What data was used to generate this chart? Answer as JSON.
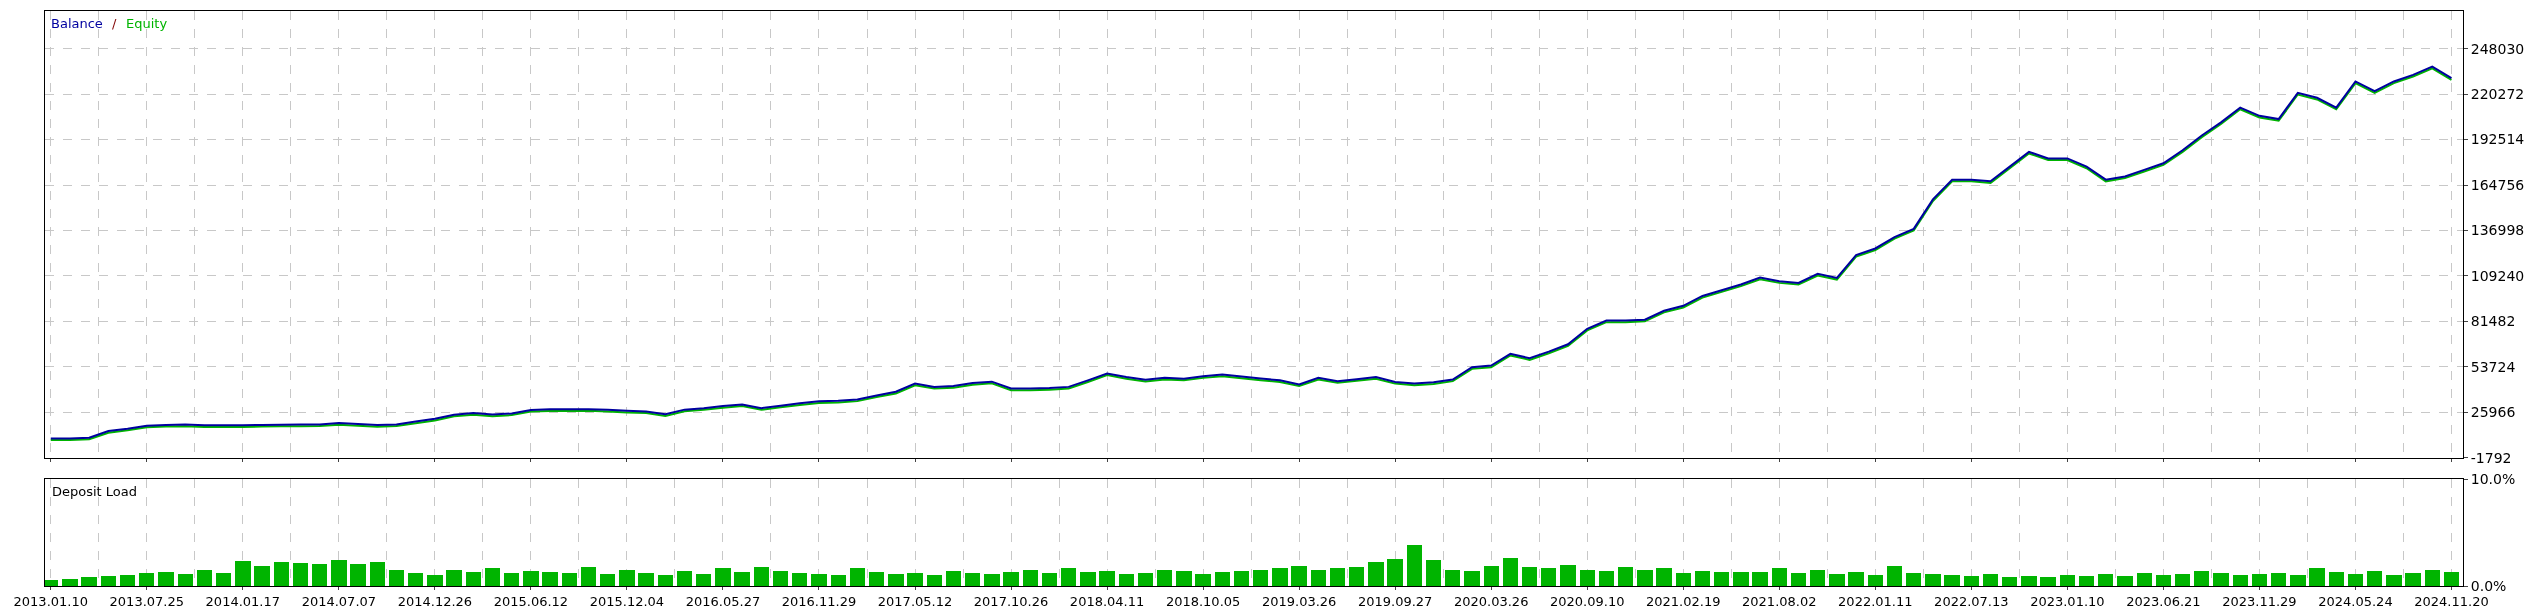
{
  "chart_data": [
    {
      "type": "line",
      "annotations": [
        "/"
      ],
      "legend": false,
      "grid": true,
      "tick_labels": "y",
      "categories": [
        "2013.01.10",
        null,
        null,
        null,
        null,
        "2013.07.25",
        null,
        null,
        null,
        null,
        "2014.01.17",
        null,
        null,
        null,
        null,
        "2014.07.07",
        null,
        null,
        null,
        null,
        "2014.12.26",
        null,
        null,
        null,
        null,
        "2015.06.12",
        null,
        null,
        null,
        null,
        "2015.12.04",
        null,
        null,
        null,
        null,
        "2016.05.27",
        null,
        null,
        null,
        null,
        "2016.11.29",
        null,
        null,
        null,
        null,
        "2017.05.12",
        null,
        null,
        null,
        null,
        "2017.10.26",
        null,
        null,
        null,
        null,
        "2018.04.11",
        null,
        null,
        null,
        null,
        "2018.10.05",
        null,
        null,
        null,
        null,
        "2019.03.26",
        null,
        null,
        null,
        null,
        "2019.09.27",
        null,
        null,
        null,
        null,
        "2020.03.26",
        null,
        null,
        null,
        null,
        "2020.09.10",
        null,
        null,
        null,
        null,
        "2021.02.19",
        null,
        null,
        null,
        null,
        "2021.08.02",
        null,
        null,
        null,
        null,
        "2022.01.11",
        null,
        null,
        null,
        null,
        "2022.07.13",
        null,
        null,
        null,
        null,
        "2023.01.10",
        null,
        null,
        null,
        null,
        "2023.06.21",
        null,
        null,
        null,
        null,
        "2023.11.29",
        null,
        null,
        null,
        null,
        "2024.05.24",
        null,
        null,
        null,
        null,
        "2024.11.20"
      ],
      "ylim": [
        -1792,
        271000
      ],
      "yticks": [
        -1792,
        25966,
        53724,
        81482,
        109240,
        136998,
        164756,
        192514,
        220272,
        248030
      ],
      "series": [
        {
          "name": "Equity",
          "color": "#00b400",
          "values": [
            9000,
            9000,
            9500,
            13500,
            15000,
            16800,
            17300,
            17500,
            17000,
            17000,
            17000,
            17300,
            17400,
            17500,
            17600,
            18400,
            17800,
            17200,
            17600,
            19300,
            21000,
            23500,
            24500,
            23600,
            24300,
            26400,
            26800,
            26800,
            26900,
            26500,
            25900,
            25500,
            23800,
            26600,
            27500,
            28800,
            29800,
            27500,
            29000,
            30500,
            31700,
            32000,
            32800,
            35300,
            37500,
            42500,
            40500,
            41000,
            42800,
            43700,
            39500,
            39500,
            39800,
            40500,
            44500,
            48700,
            46500,
            44800,
            46000,
            45500,
            47000,
            48000,
            46800,
            45600,
            44500,
            42000,
            46000,
            44000,
            45200,
            46500,
            43500,
            42500,
            43300,
            45000,
            52500,
            53500,
            60700,
            58000,
            62000,
            66500,
            76000,
            81000,
            81000,
            81500,
            87000,
            90000,
            96000,
            99500,
            103000,
            107200,
            105000,
            104000,
            109500,
            107000,
            121000,
            125000,
            132000,
            137000,
            155000,
            167000,
            167000,
            166000,
            175000,
            184000,
            180000,
            180000,
            175000,
            167000,
            169000,
            173000,
            177000,
            185000,
            194000,
            202000,
            211000,
            206000,
            204000,
            220000,
            217000,
            211000,
            227000,
            221000,
            227000,
            231000,
            236000,
            229000
          ]
        },
        {
          "name": "Balance",
          "color": "#0000a0",
          "values": [
            10000,
            10000,
            10500,
            14500,
            16000,
            17800,
            18300,
            18500,
            18000,
            18000,
            18000,
            18300,
            18400,
            18500,
            18600,
            19400,
            18800,
            18200,
            18600,
            20300,
            22000,
            24500,
            25500,
            24600,
            25300,
            27400,
            27800,
            27800,
            27900,
            27500,
            26900,
            26500,
            24800,
            27600,
            28500,
            29800,
            30800,
            28500,
            30000,
            31500,
            32700,
            33000,
            33800,
            36300,
            38500,
            43500,
            41500,
            42000,
            43800,
            44700,
            40500,
            40500,
            40800,
            41500,
            45500,
            49700,
            47500,
            45800,
            47000,
            46500,
            48000,
            49000,
            47800,
            46600,
            45500,
            43000,
            47000,
            45000,
            46200,
            47500,
            44500,
            43500,
            44300,
            46000,
            53500,
            54500,
            61700,
            59000,
            63000,
            67500,
            77000,
            82000,
            82000,
            82500,
            88000,
            91000,
            97000,
            100500,
            104000,
            108200,
            106000,
            105000,
            110500,
            108000,
            122000,
            126000,
            133000,
            138000,
            156000,
            168000,
            168000,
            167000,
            176000,
            185000,
            181000,
            181000,
            176000,
            168000,
            170000,
            174000,
            178000,
            186000,
            195000,
            203000,
            212000,
            207000,
            205000,
            221000,
            218000,
            212000,
            228000,
            222000,
            228000,
            232000,
            237000,
            230000
          ]
        }
      ]
    },
    {
      "type": "bar",
      "title": "Deposit Load",
      "grid": true,
      "categories": [
        "2013.01.10",
        null,
        null,
        null,
        null,
        "2013.07.25",
        null,
        null,
        null,
        null,
        "2014.01.17",
        null,
        null,
        null,
        null,
        "2014.07.07",
        null,
        null,
        null,
        null,
        "2014.12.26",
        null,
        null,
        null,
        null,
        "2015.06.12",
        null,
        null,
        null,
        null,
        "2015.12.04",
        null,
        null,
        null,
        null,
        "2016.05.27",
        null,
        null,
        null,
        null,
        "2016.11.29",
        null,
        null,
        null,
        null,
        "2017.05.12",
        null,
        null,
        null,
        null,
        "2017.10.26",
        null,
        null,
        null,
        null,
        "2018.04.11",
        null,
        null,
        null,
        null,
        "2018.10.05",
        null,
        null,
        null,
        null,
        "2019.03.26",
        null,
        null,
        null,
        null,
        "2019.09.27",
        null,
        null,
        null,
        null,
        "2020.03.26",
        null,
        null,
        null,
        null,
        "2020.09.10",
        null,
        null,
        null,
        null,
        "2021.02.19",
        null,
        null,
        null,
        null,
        "2021.08.02",
        null,
        null,
        null,
        null,
        "2022.01.11",
        null,
        null,
        null,
        null,
        "2022.07.13",
        null,
        null,
        null,
        null,
        "2023.01.10",
        null,
        null,
        null,
        null,
        "2023.06.21",
        null,
        null,
        null,
        null,
        "2023.11.29",
        null,
        null,
        null,
        null,
        "2024.05.24",
        null,
        null,
        null,
        null,
        "2024.11.20"
      ],
      "ylim": [
        0,
        10
      ],
      "yticks": [
        {
          "value": 0,
          "label": "0.0%"
        },
        {
          "value": 10,
          "label": "10.0%"
        }
      ],
      "series": [
        {
          "color": "#00b400",
          "values": [
            0.5,
            0.6,
            0.8,
            0.9,
            1.0,
            1.2,
            1.3,
            1.1,
            1.5,
            1.2,
            2.3,
            1.8,
            2.2,
            2.1,
            2.0,
            2.4,
            2.0,
            2.2,
            1.5,
            1.2,
            1.0,
            1.5,
            1.3,
            1.6,
            1.2,
            1.4,
            1.3,
            1.2,
            1.7,
            1.1,
            1.5,
            1.2,
            1.0,
            1.4,
            1.1,
            1.6,
            1.3,
            1.7,
            1.4,
            1.2,
            1.1,
            1.0,
            1.6,
            1.3,
            1.1,
            1.2,
            1.0,
            1.4,
            1.2,
            1.1,
            1.3,
            1.5,
            1.2,
            1.6,
            1.3,
            1.4,
            1.1,
            1.2,
            1.5,
            1.4,
            1.1,
            1.3,
            1.4,
            1.5,
            1.6,
            1.8,
            1.5,
            1.6,
            1.7,
            2.2,
            2.5,
            3.8,
            2.4,
            1.5,
            1.4,
            1.8,
            2.6,
            1.7,
            1.6,
            1.9,
            1.5,
            1.4,
            1.7,
            1.5,
            1.6,
            1.2,
            1.4,
            1.3,
            1.3,
            1.3,
            1.6,
            1.2,
            1.5,
            1.1,
            1.3,
            1.0,
            1.8,
            1.2,
            1.1,
            1.0,
            0.9,
            1.1,
            0.8,
            0.9,
            0.8,
            1.0,
            0.9,
            1.1,
            0.9,
            1.2,
            1.0,
            1.1,
            1.4,
            1.2,
            1.0,
            1.1,
            1.2,
            1.0,
            1.6,
            1.3,
            1.1,
            1.4,
            1.0,
            1.2,
            1.5,
            1.3
          ]
        }
      ]
    }
  ]
}
